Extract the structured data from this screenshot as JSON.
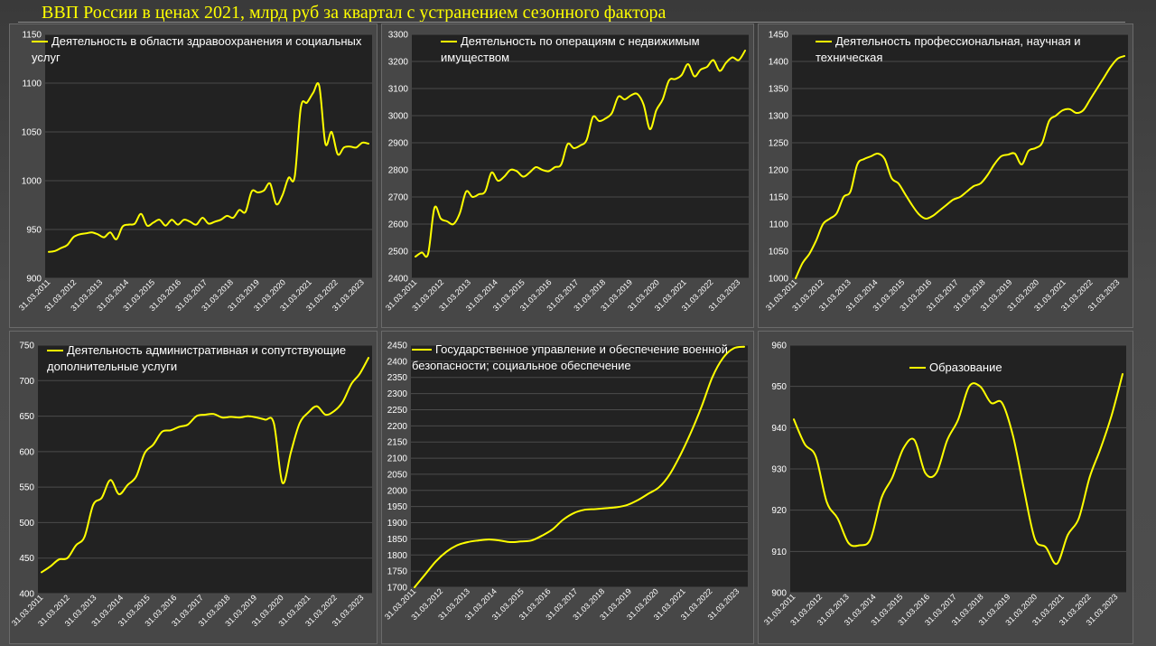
{
  "page": {
    "title": "ВВП России в ценах 2021, млрд руб за квартал с устранением сезонного фактора"
  },
  "colors": {
    "series": "#ffff00",
    "plot_background": "#222222",
    "panel_background": "#474747",
    "gridlines": "#4b4b4b",
    "text": "#ffffff"
  },
  "chart_data": [
    {
      "type": "line",
      "title": "",
      "legend": [
        "Деятельность в области здравоохранения и социальных",
        "услуг"
      ],
      "xlabel": "",
      "ylabel": "",
      "ylim": [
        900,
        1150
      ],
      "yticks": [
        900,
        950,
        1000,
        1050,
        1100,
        1150
      ],
      "x_ticks": [
        "31.03.2011",
        "31.03.2012",
        "31.03.2013",
        "31.03.2014",
        "31.03.2015",
        "31.03.2016",
        "31.03.2017",
        "31.03.2018",
        "31.03.2019",
        "31.03.2020",
        "31.03.2021",
        "31.03.2022",
        "31.03.2023"
      ],
      "grid": true,
      "series": [
        {
          "values": [
            927,
            928,
            931,
            934,
            942,
            945,
            946,
            947,
            945,
            942,
            947,
            940,
            953,
            955,
            956,
            966,
            954,
            957,
            960,
            954,
            960,
            955,
            960,
            958,
            955,
            962,
            956,
            958,
            960,
            964,
            962,
            970,
            968,
            989,
            988,
            990,
            997,
            976,
            985,
            1003,
            1004,
            1075,
            1080,
            1090,
            1097,
            1038,
            1050,
            1027,
            1034,
            1035,
            1034,
            1039,
            1038
          ]
        }
      ]
    },
    {
      "type": "line",
      "title": "",
      "legend": [
        "Деятельность по операциям с недвижимым",
        "имуществом"
      ],
      "xlabel": "",
      "ylabel": "",
      "ylim": [
        2400,
        3300
      ],
      "yticks": [
        2400,
        2500,
        2600,
        2700,
        2800,
        2900,
        3000,
        3100,
        3200,
        3300
      ],
      "x_ticks": [
        "31.03.2011",
        "31.03.2012",
        "31.03.2013",
        "31.03.2014",
        "31.03.2015",
        "31.03.2016",
        "31.03.2017",
        "31.03.2018",
        "31.03.2019",
        "31.03.2020",
        "31.03.2021",
        "31.03.2022",
        "31.03.2023"
      ],
      "grid": true,
      "series": [
        {
          "values": [
            2480,
            2495,
            2490,
            2660,
            2620,
            2610,
            2600,
            2640,
            2720,
            2700,
            2710,
            2720,
            2790,
            2760,
            2775,
            2800,
            2795,
            2775,
            2790,
            2810,
            2800,
            2795,
            2810,
            2820,
            2895,
            2880,
            2890,
            2910,
            2995,
            2980,
            2990,
            3010,
            3070,
            3060,
            3075,
            3080,
            3040,
            2950,
            3020,
            3060,
            3130,
            3135,
            3150,
            3190,
            3145,
            3170,
            3180,
            3205,
            3165,
            3195,
            3215,
            3205,
            3240
          ]
        }
      ]
    },
    {
      "type": "line",
      "title": "",
      "legend": [
        "Деятельность профессиональная, научная и",
        "техническая"
      ],
      "xlabel": "",
      "ylabel": "",
      "ylim": [
        1000,
        1450
      ],
      "yticks": [
        1000,
        1050,
        1100,
        1150,
        1200,
        1250,
        1300,
        1350,
        1400,
        1450
      ],
      "x_ticks": [
        "31.03.2011",
        "31.03.2012",
        "31.03.2013",
        "31.03.2014",
        "31.03.2015",
        "31.03.2016",
        "31.03.2017",
        "31.03.2018",
        "31.03.2019",
        "31.03.2020",
        "31.03.2021",
        "31.03.2022",
        "31.03.2023"
      ],
      "grid": true,
      "series": [
        {
          "values": [
            1000,
            1028,
            1045,
            1070,
            1100,
            1110,
            1120,
            1150,
            1160,
            1210,
            1220,
            1225,
            1230,
            1220,
            1185,
            1175,
            1155,
            1135,
            1118,
            1110,
            1115,
            1125,
            1135,
            1145,
            1150,
            1160,
            1170,
            1175,
            1190,
            1210,
            1225,
            1228,
            1230,
            1210,
            1235,
            1240,
            1250,
            1290,
            1300,
            1310,
            1312,
            1305,
            1310,
            1330,
            1350,
            1370,
            1390,
            1405,
            1410
          ]
        }
      ]
    },
    {
      "type": "line",
      "title": "",
      "legend": [
        "Деятельность административная и сопутствующие",
        "дополнительные услуги"
      ],
      "xlabel": "",
      "ylabel": "",
      "ylim": [
        400,
        750
      ],
      "yticks": [
        400,
        450,
        500,
        550,
        600,
        650,
        700,
        750
      ],
      "x_ticks": [
        "31.03.2011",
        "31.03.2012",
        "31.03.2013",
        "31.03.2014",
        "31.03.2015",
        "31.03.2016",
        "31.03.2017",
        "31.03.2018",
        "31.03.2019",
        "31.03.2020",
        "31.03.2021",
        "31.03.2022",
        "31.03.2023"
      ],
      "grid": true,
      "series": [
        {
          "values": [
            430,
            438,
            448,
            450,
            468,
            480,
            525,
            535,
            560,
            540,
            553,
            565,
            598,
            610,
            628,
            630,
            635,
            638,
            650,
            652,
            653,
            648,
            649,
            648,
            650,
            648,
            645,
            640,
            556,
            600,
            640,
            655,
            664,
            652,
            657,
            670,
            695,
            710,
            732
          ]
        }
      ]
    },
    {
      "type": "line",
      "title": "",
      "legend": [
        "Государственное управление и обеспечение военной",
        "безопасности; социальное обеспечение"
      ],
      "xlabel": "",
      "ylabel": "",
      "ylim": [
        1700,
        2450
      ],
      "yticks": [
        1700,
        1750,
        1800,
        1850,
        1900,
        1950,
        2000,
        2050,
        2100,
        2150,
        2200,
        2250,
        2300,
        2350,
        2400,
        2450
      ],
      "x_ticks": [
        "31.03.2011",
        "31.03.2012",
        "31.03.2013",
        "31.03.2014",
        "31.03.2015",
        "31.03.2016",
        "31.03.2017",
        "31.03.2018",
        "31.03.2019",
        "31.03.2020",
        "31.03.2021",
        "31.03.2022",
        "31.03.2023"
      ],
      "grid": true,
      "series": [
        {
          "values": [
            1700,
            1740,
            1780,
            1810,
            1830,
            1840,
            1845,
            1848,
            1845,
            1840,
            1842,
            1845,
            1860,
            1880,
            1910,
            1930,
            1940,
            1942,
            1945,
            1948,
            1955,
            1970,
            1990,
            2010,
            2050,
            2110,
            2180,
            2260,
            2350,
            2410,
            2440,
            2445
          ]
        }
      ]
    },
    {
      "type": "line",
      "title": "",
      "legend": [
        "Образование"
      ],
      "xlabel": "",
      "ylabel": "",
      "ylim": [
        900,
        960
      ],
      "yticks": [
        900,
        910,
        920,
        930,
        940,
        950,
        960
      ],
      "x_ticks": [
        "31.03.2011",
        "31.03.2012",
        "31.03.2013",
        "31.03.2014",
        "31.03.2015",
        "31.03.2016",
        "31.03.2017",
        "31.03.2018",
        "31.03.2019",
        "31.03.2020",
        "31.03.2021",
        "31.03.2022",
        "31.03.2023"
      ],
      "grid": true,
      "series": [
        {
          "values": [
            942,
            936,
            933,
            922,
            918,
            912,
            911.5,
            913,
            923,
            928,
            935,
            937,
            929,
            929,
            937,
            942,
            950,
            950,
            946,
            946,
            938,
            925,
            913,
            911,
            907,
            914,
            918,
            928,
            935,
            943,
            953
          ]
        }
      ]
    }
  ]
}
